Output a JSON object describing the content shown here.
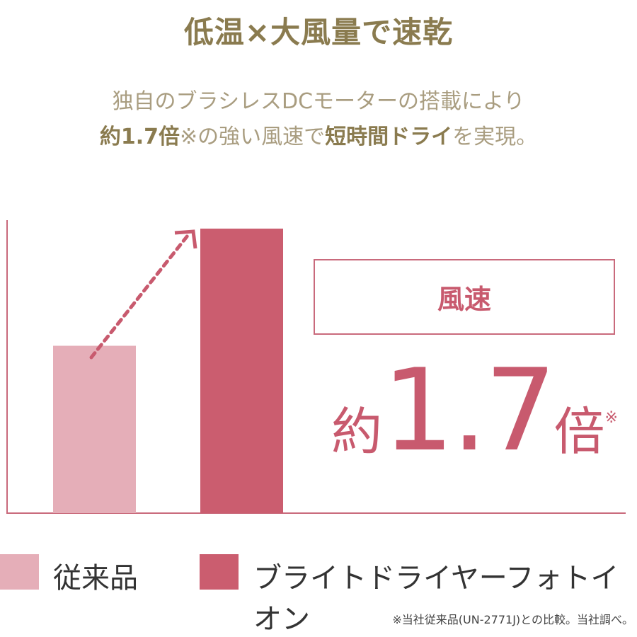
{
  "title": "低温×大風量で速乾",
  "subtitle": {
    "line1": "独自のブラシレスDCモーターの搭載により",
    "line2_parts": [
      "約1.7倍",
      "※の強い風速で",
      "短時間ドライ",
      "を実現。"
    ]
  },
  "callout": {
    "label": "風速",
    "prefix": "約",
    "value": "1.7",
    "suffix": "倍",
    "mark": "※"
  },
  "legend": [
    {
      "label": "従来品",
      "color": "#e5aeb8"
    },
    {
      "label": "ブライトドライヤーフォトイオン",
      "color": "#cb5d6f"
    }
  ],
  "footnote": "※当社従来品(UN-2771J)との比較。当社調べ。",
  "colors": {
    "accent": "#c85a6e",
    "title": "#8a7b4f",
    "axis": "#c96a7c"
  },
  "chart_data": {
    "type": "bar",
    "categories": [
      "従来品",
      "ブライトドライヤーフォトイオン"
    ],
    "values": [
      1,
      1.7
    ],
    "colors": [
      "#e5aeb8",
      "#cb5d6f"
    ],
    "ylim": [
      0,
      1.7
    ],
    "grid": false,
    "legend": "bottom",
    "annotation": "dashed arrow from first bar to second bar"
  }
}
